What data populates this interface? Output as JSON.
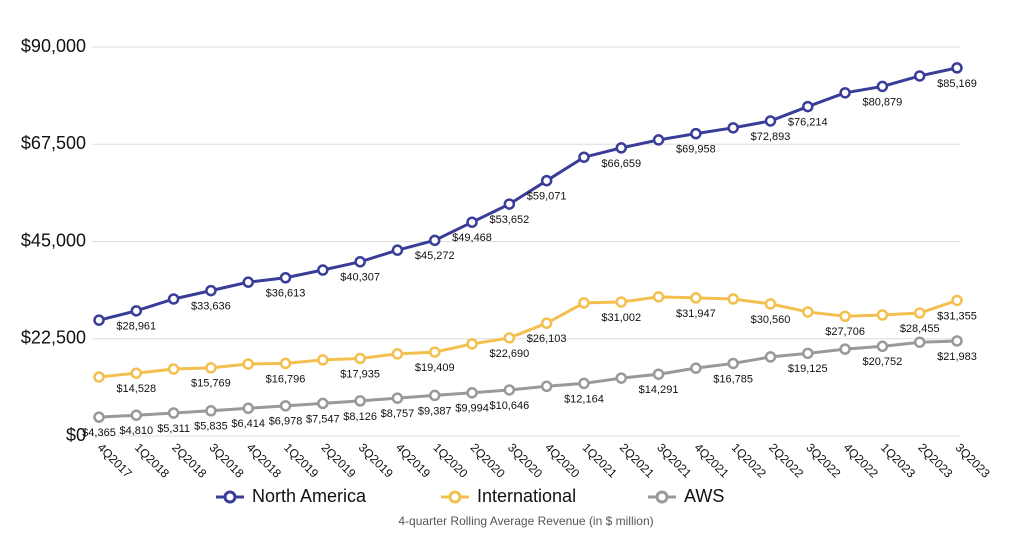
{
  "chart_data": {
    "type": "line",
    "caption": "4-quarter Rolling Average Revenue (in $ million)",
    "categories": [
      "4Q2017",
      "1Q2018",
      "2Q2018",
      "3Q2018",
      "4Q2018",
      "1Q2019",
      "2Q2019",
      "3Q2019",
      "4Q2019",
      "1Q2020",
      "2Q2020",
      "3Q2020",
      "4Q2020",
      "1Q2021",
      "2Q2021",
      "3Q2021",
      "4Q2021",
      "1Q2022",
      "2Q2022",
      "3Q2022",
      "4Q2022",
      "1Q2023",
      "2Q2023",
      "3Q2023"
    ],
    "series": [
      {
        "name": "North America",
        "color": "#3a3d98",
        "values": [
          26800,
          28961,
          31700,
          33636,
          35600,
          36613,
          38400,
          40307,
          43000,
          45272,
          49468,
          53652,
          59071,
          64500,
          66659,
          68500,
          69958,
          71300,
          72893,
          76214,
          79400,
          80879,
          83300,
          85169
        ],
        "value_labels": [
          null,
          "$28,961",
          null,
          "$33,636",
          null,
          "$36,613",
          null,
          "$40,307",
          null,
          "$45,272",
          "$49,468",
          "$53,652",
          "$59,071",
          null,
          "$66,659",
          null,
          "$69,958",
          null,
          "$72,893",
          "$76,214",
          null,
          "$80,879",
          null,
          "$85,169"
        ]
      },
      {
        "name": "International",
        "color": "#f3c04f",
        "values": [
          13650,
          14528,
          15500,
          15769,
          16650,
          16796,
          17600,
          17935,
          19000,
          19409,
          21300,
          22690,
          26103,
          30800,
          31002,
          32200,
          31947,
          31700,
          30560,
          28700,
          27706,
          28000,
          28455,
          31355
        ],
        "value_labels": [
          null,
          "$14,528",
          null,
          "$15,769",
          null,
          "$16,796",
          null,
          "$17,935",
          null,
          "$19,409",
          null,
          "$22,690",
          "$26,103",
          null,
          "$31,002",
          null,
          "$31,947",
          null,
          "$30,560",
          null,
          "$27,706",
          null,
          "$28,455",
          "$31,355"
        ]
      },
      {
        "name": "AWS",
        "color": "#999999",
        "values": [
          4365,
          4810,
          5311,
          5835,
          6414,
          6978,
          7547,
          8126,
          8757,
          9387,
          9994,
          10646,
          11500,
          12164,
          13400,
          14291,
          15700,
          16785,
          18300,
          19125,
          20100,
          20752,
          21700,
          21983
        ],
        "value_labels": [
          "$4,365",
          "$4,810",
          "$5,311",
          "$5,835",
          "$6,414",
          "$6,978",
          "$7,547",
          "$8,126",
          "$8,757",
          "$9,387",
          "$9,994",
          "$10,646",
          null,
          "$12,164",
          null,
          "$14,291",
          null,
          "$16,785",
          null,
          "$19,125",
          null,
          "$20,752",
          null,
          "$21,983"
        ]
      }
    ],
    "ylim": [
      0,
      90000
    ],
    "yticks": [
      {
        "value": 0,
        "label": "$0"
      },
      {
        "value": 22500,
        "label": "$22,500"
      },
      {
        "value": 45000,
        "label": "$45,000"
      },
      {
        "value": 67500,
        "label": "$67,500"
      },
      {
        "value": 90000,
        "label": "$90,000"
      }
    ],
    "grid": true
  }
}
